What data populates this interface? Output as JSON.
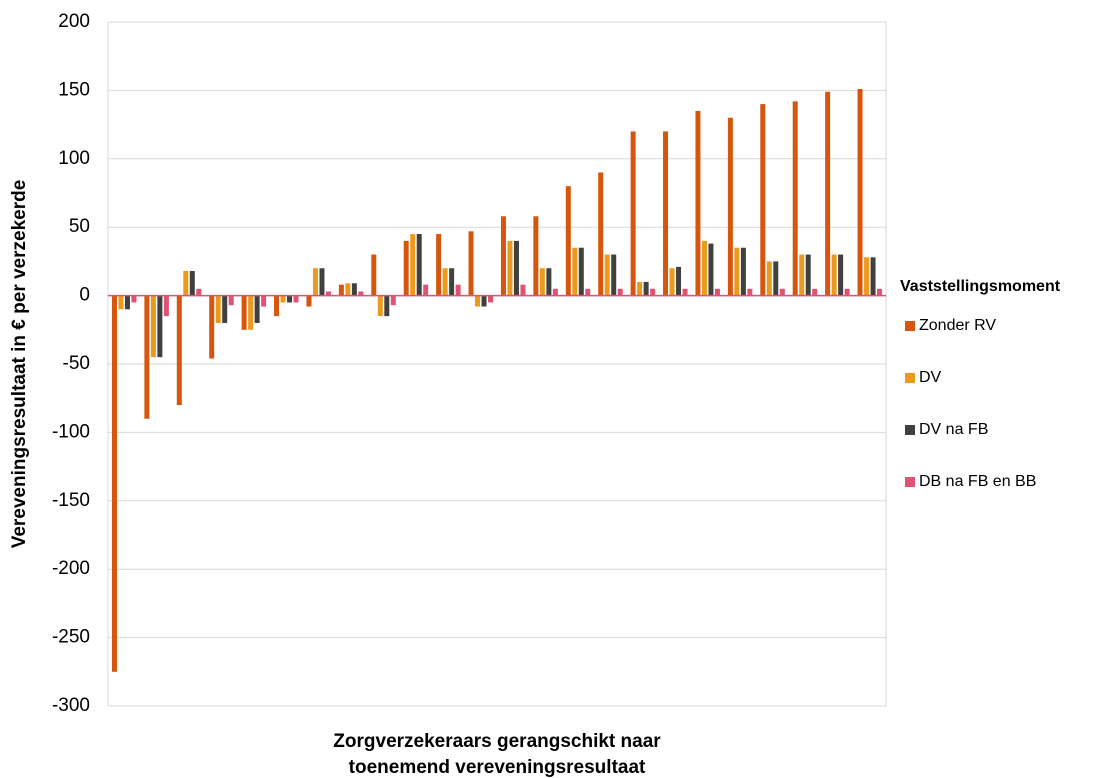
{
  "chart_data": {
    "type": "bar",
    "ylabel": "Vereveningsresultaat in € per verzekerde",
    "xlabel": [
      "Zorgverzekeraars gerangschikt naar",
      "toenemend vereveningsresultaat"
    ],
    "legend_title": "Vaststellingsmoment",
    "categories": [
      null,
      null,
      null,
      null,
      null,
      null,
      null,
      null,
      null,
      null,
      null,
      null,
      null,
      null,
      null,
      null,
      null,
      null,
      null,
      null,
      null,
      null,
      null,
      null
    ],
    "series": [
      {
        "name": "Zonder RV",
        "color": "#d5560c",
        "values": [
          -275,
          -90,
          -80,
          -46,
          -25,
          -15,
          -8,
          8,
          30,
          40,
          45,
          47,
          58,
          58,
          80,
          90,
          120,
          120,
          135,
          130,
          140,
          142,
          149,
          151
        ]
      },
      {
        "name": "DV",
        "color": "#ec9a1e",
        "values": [
          -10,
          -45,
          18,
          -20,
          -25,
          -5,
          20,
          9,
          -15,
          45,
          20,
          -8,
          40,
          20,
          35,
          30,
          10,
          20,
          40,
          35,
          25,
          30,
          30,
          28
        ]
      },
      {
        "name": "DV na FB",
        "color": "#404040",
        "values": [
          -10,
          -45,
          18,
          -20,
          -20,
          -5,
          20,
          9,
          -15,
          45,
          20,
          -8,
          40,
          20,
          35,
          30,
          10,
          21,
          38,
          35,
          25,
          30,
          30,
          28
        ]
      },
      {
        "name": "DB na FB en BB",
        "color": "#e05274",
        "values": [
          -5,
          -15,
          5,
          -7,
          -8,
          -5,
          3,
          3,
          -7,
          8,
          8,
          -5,
          8,
          5,
          5,
          5,
          5,
          5,
          5,
          5,
          5,
          5,
          5,
          5
        ]
      }
    ],
    "ylim": [
      -300,
      200
    ],
    "yticks": [
      -300,
      -250,
      -200,
      -150,
      -100,
      -50,
      0,
      50,
      100,
      150,
      200
    ],
    "grid": true,
    "zero_line_color": "#e05274",
    "legend": "right"
  }
}
